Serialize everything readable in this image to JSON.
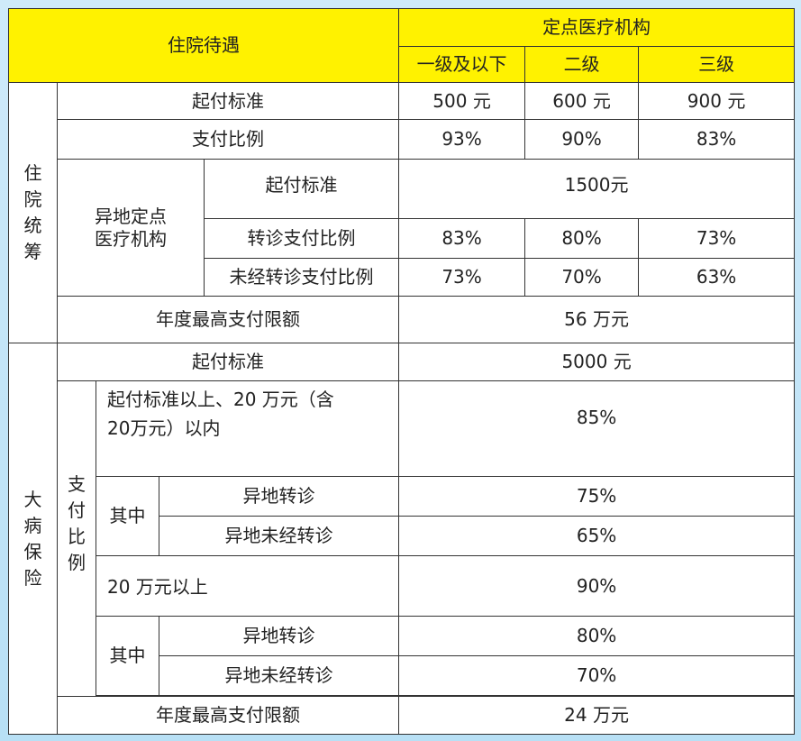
{
  "header": {
    "title": "住院待遇",
    "institutions": "定点医疗机构",
    "level1": "一级及以下",
    "level2": "二级",
    "level3": "三级"
  },
  "hospital": {
    "section_label": [
      "住",
      "院",
      "统",
      "筹"
    ],
    "deductible": {
      "label": "起付标准",
      "l1": "500 元",
      "l2": "600 元",
      "l3": "900 元"
    },
    "pay_ratio": {
      "label": "支付比例",
      "l1": "93%",
      "l2": "90%",
      "l3": "83%"
    },
    "remote": {
      "label_line1": "异地定点",
      "label_line2": "医疗机构",
      "deductible": {
        "label": "起付标准",
        "value": "1500元"
      },
      "referral": {
        "label": "转诊支付比例",
        "l1": "83%",
        "l2": "80%",
        "l3": "73%"
      },
      "no_referral": {
        "label": "未经转诊支付比例",
        "l1": "73%",
        "l2": "70%",
        "l3": "63%"
      }
    },
    "annual_limit": {
      "label": "年度最高支付限额",
      "value": "56 万元"
    }
  },
  "critical": {
    "section_label": [
      "大",
      "病",
      "保",
      "险"
    ],
    "deductible": {
      "label": "起付标准",
      "value": "5000 元"
    },
    "pay_ratio_label": [
      "支",
      "付",
      "比",
      "例"
    ],
    "tier1": {
      "label_line1": "起付标准以上、20 万元（含",
      "label_line2": "20万元）以内",
      "value": "85%",
      "of_which": "其中",
      "remote_referral": {
        "label": "异地转诊",
        "value": "75%"
      },
      "remote_no_referral": {
        "label": "异地未经转诊",
        "value": "65%"
      }
    },
    "tier2": {
      "label": "20 万元以上",
      "value": "90%",
      "of_which": "其中",
      "remote_referral": {
        "label": "异地转诊",
        "value": "80%"
      },
      "remote_no_referral": {
        "label": "异地未经转诊",
        "value": "70%"
      }
    },
    "annual_limit": {
      "label": "年度最高支付限额",
      "value": "24 万元"
    }
  }
}
